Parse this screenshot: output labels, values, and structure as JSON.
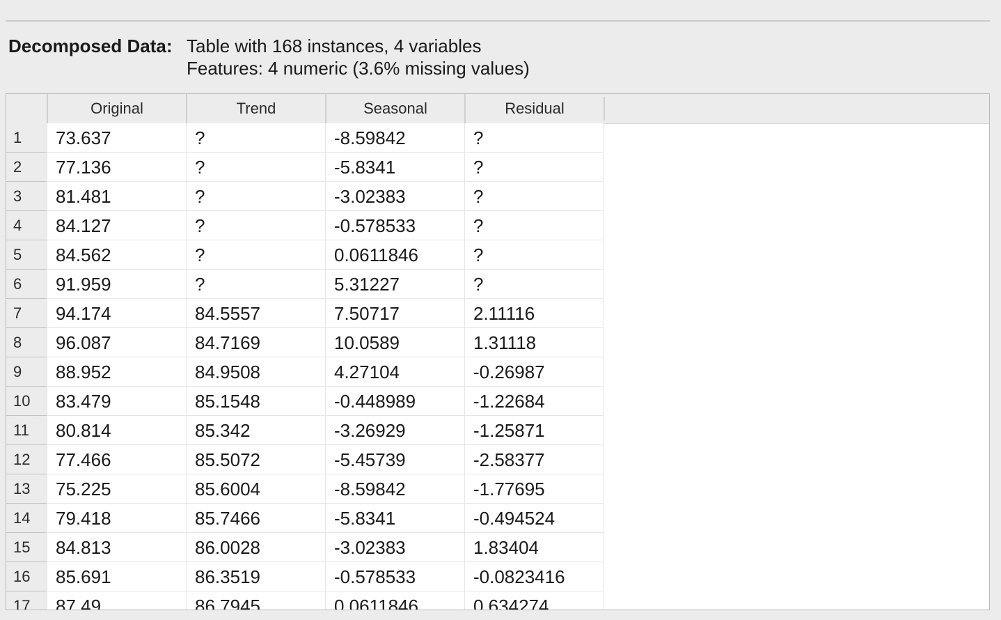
{
  "info": {
    "label": "Decomposed Data:",
    "line1": "Table with 168 instances, 4 variables",
    "line2": "Features: 4 numeric (3.6% missing values)"
  },
  "table": {
    "columns": [
      "Original",
      "Trend",
      "Seasonal",
      "Residual"
    ],
    "rows": [
      {
        "n": "1",
        "cells": [
          "73.637",
          "?",
          "-8.59842",
          "?"
        ]
      },
      {
        "n": "2",
        "cells": [
          "77.136",
          "?",
          "-5.8341",
          "?"
        ]
      },
      {
        "n": "3",
        "cells": [
          "81.481",
          "?",
          "-3.02383",
          "?"
        ]
      },
      {
        "n": "4",
        "cells": [
          "84.127",
          "?",
          "-0.578533",
          "?"
        ]
      },
      {
        "n": "5",
        "cells": [
          "84.562",
          "?",
          "0.0611846",
          "?"
        ]
      },
      {
        "n": "6",
        "cells": [
          "91.959",
          "?",
          "5.31227",
          "?"
        ]
      },
      {
        "n": "7",
        "cells": [
          "94.174",
          "84.5557",
          "7.50717",
          "2.11116"
        ]
      },
      {
        "n": "8",
        "cells": [
          "96.087",
          "84.7169",
          "10.0589",
          "1.31118"
        ]
      },
      {
        "n": "9",
        "cells": [
          "88.952",
          "84.9508",
          "4.27104",
          "-0.26987"
        ]
      },
      {
        "n": "10",
        "cells": [
          "83.479",
          "85.1548",
          "-0.448989",
          "-1.22684"
        ]
      },
      {
        "n": "11",
        "cells": [
          "80.814",
          "85.342",
          "-3.26929",
          "-1.25871"
        ]
      },
      {
        "n": "12",
        "cells": [
          "77.466",
          "85.5072",
          "-5.45739",
          "-2.58377"
        ]
      },
      {
        "n": "13",
        "cells": [
          "75.225",
          "85.6004",
          "-8.59842",
          "-1.77695"
        ]
      },
      {
        "n": "14",
        "cells": [
          "79.418",
          "85.7466",
          "-5.8341",
          "-0.494524"
        ]
      },
      {
        "n": "15",
        "cells": [
          "84.813",
          "86.0028",
          "-3.02383",
          "1.83404"
        ]
      },
      {
        "n": "16",
        "cells": [
          "85.691",
          "86.3519",
          "-0.578533",
          "-0.0823416"
        ]
      },
      {
        "n": "17",
        "cells": [
          "87.49",
          "86.7945",
          "0.0611846",
          "0.634274"
        ]
      }
    ]
  }
}
